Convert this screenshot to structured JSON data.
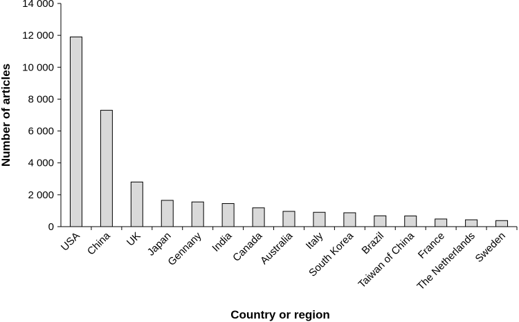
{
  "chart_data": {
    "type": "bar",
    "title": "",
    "xlabel": "Country or region",
    "ylabel": "Number of articles",
    "ylim": [
      0,
      14000
    ],
    "yticks": [
      0,
      2000,
      4000,
      6000,
      8000,
      10000,
      12000,
      14000
    ],
    "ytick_labels": [
      "0",
      "2 000",
      "4 000",
      "6 000",
      "8 000",
      "10 000",
      "12 000",
      "14 000"
    ],
    "categories": [
      "USA",
      "China",
      "UK",
      "Japan",
      "Gennany",
      "India",
      "Canada",
      "Australia",
      "Italy",
      "South Korea",
      "Brazil",
      "Taiwan of China",
      "France",
      "The Netherlands",
      "Sweden"
    ],
    "values": [
      11900,
      7300,
      2800,
      1650,
      1550,
      1450,
      1180,
      960,
      900,
      870,
      680,
      670,
      480,
      430,
      380
    ],
    "bar_color": "#d9d9d9",
    "bar_edge_color": "#000000",
    "grid": false
  }
}
